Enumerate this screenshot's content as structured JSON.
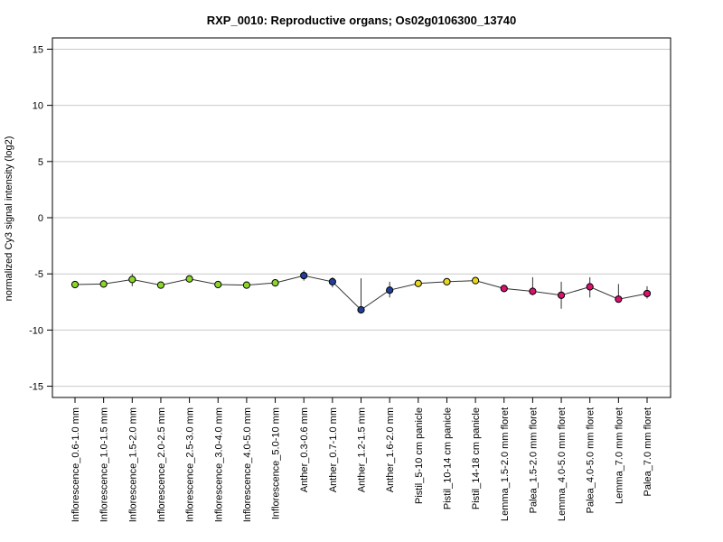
{
  "chart_data": {
    "type": "line",
    "title": "RXP_0010: Reproductive organs; Os02g0106300_13740",
    "xlabel": "",
    "ylabel": "normalized Cy3 signal intensity (log2)",
    "ylim": [
      -16,
      16
    ],
    "yticks": [
      -15,
      -10,
      -5,
      0,
      5,
      10,
      15
    ],
    "grid": "horizontal",
    "categories": [
      "Inflorescence_0.6-1.0 mm",
      "Inflorescence_1.0-1.5 mm",
      "Inflorescence_1.5-2.0 mm",
      "Inflorescence_2.0-2.5 mm",
      "Inflorescence_2.5-3.0 mm",
      "Inflorescence_3.0-4.0 mm",
      "Inflorescence_4.0-5.0 mm",
      "Inflorescence_5.0-10 mm",
      "Anther_0.3-0.6 mm",
      "Anther_0.7-1.0 mm",
      "Anther_1.2-1.5 mm",
      "Anther_1.6-2.0 mm",
      "Pistil_5-10 cm panicle",
      "Pistil_10-14 cm panicle",
      "Pistil_14-18 cm panicle",
      "Lemma_1.5-2.0 mm floret",
      "Palea_1.5-2.0 mm floret",
      "Lemma_4.0-5.0 mm floret",
      "Palea_4.0-5.0 mm floret",
      "Lemma_7.0 mm floret",
      "Palea_7.0 mm floret"
    ],
    "values": [
      -5.95,
      -5.9,
      -5.5,
      -6.0,
      -5.45,
      -5.95,
      -6.0,
      -5.8,
      -5.15,
      -5.7,
      -8.2,
      -6.45,
      -5.85,
      -5.7,
      -5.6,
      -6.3,
      -6.55,
      -6.9,
      -6.15,
      -7.25,
      -6.75
    ],
    "err_low": [
      -6.1,
      -6.05,
      -6.1,
      -6.1,
      -5.6,
      -6.1,
      -6.1,
      -5.95,
      -5.6,
      -6.2,
      -8.3,
      -7.1,
      -6.0,
      -5.85,
      -5.8,
      -6.6,
      -6.9,
      -8.1,
      -7.1,
      -7.4,
      -7.2
    ],
    "err_high": [
      -5.8,
      -5.75,
      -5.0,
      -5.9,
      -5.2,
      -5.8,
      -5.9,
      -5.65,
      -4.7,
      -5.3,
      -5.4,
      -5.7,
      -5.7,
      -5.55,
      -5.45,
      -6.0,
      -5.3,
      -5.7,
      -5.3,
      -5.9,
      -6.1
    ],
    "point_colors": [
      "#8cd62b",
      "#8cd62b",
      "#8cd62b",
      "#8cd62b",
      "#8cd62b",
      "#8cd62b",
      "#8cd62b",
      "#8cd62b",
      "#1f3f9a",
      "#1f3f9a",
      "#1f3f9a",
      "#1f3f9a",
      "#e5d81e",
      "#e5d81e",
      "#e5d81e",
      "#d9116f",
      "#d9116f",
      "#d9116f",
      "#d9116f",
      "#d9116f",
      "#d9116f"
    ],
    "line_color": "#333333",
    "grid_color": "#c8c8c8"
  }
}
